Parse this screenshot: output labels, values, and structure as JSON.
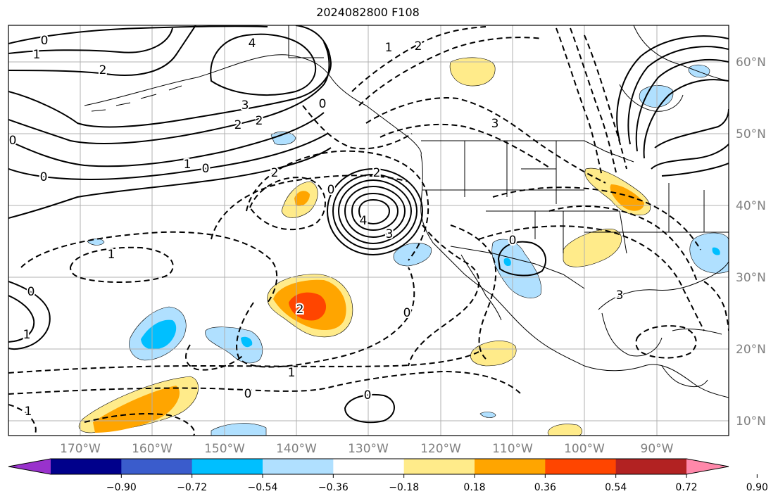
{
  "title": "2024082800 F108",
  "longitude_ticks": [
    "170°W",
    "160°W",
    "150°W",
    "140°W",
    "130°W",
    "120°W",
    "110°W",
    "100°W",
    "90°W"
  ],
  "latitude_ticks": [
    "60°N",
    "50°N",
    "40°N",
    "30°N",
    "20°N",
    "10°N"
  ],
  "colorbar": {
    "colors": [
      "#9932cc",
      "#00008b",
      "#3a5ccc",
      "#00bfff",
      "#b0e0ff",
      "#ffffff",
      "#ffeb8a",
      "#ffa500",
      "#ff4500",
      "#b22222",
      "#ff88aa"
    ],
    "ticks": [
      "−0.90",
      "−0.72",
      "−0.54",
      "−0.36",
      "−0.18",
      "0.18",
      "0.36",
      "0.54",
      "0.72",
      "0.90"
    ],
    "extend": "both"
  },
  "contour_labels": [
    "0",
    "1",
    "2",
    "4",
    "3",
    "2",
    "2",
    "1",
    "0",
    "0",
    "0",
    "1",
    "0",
    "2",
    "0",
    "2",
    "3",
    "4",
    "3",
    "2",
    "1",
    "0",
    "0",
    "1",
    "0",
    "1",
    "0",
    "1",
    "2",
    "0",
    "3"
  ],
  "colors": {
    "grid": "#b0b0b0",
    "coast": "#000000",
    "yellow": "#ffeb8a",
    "orange": "#ffa500",
    "red_orange": "#ff4500",
    "light_blue": "#b0e0ff",
    "blue": "#00bfff"
  }
}
